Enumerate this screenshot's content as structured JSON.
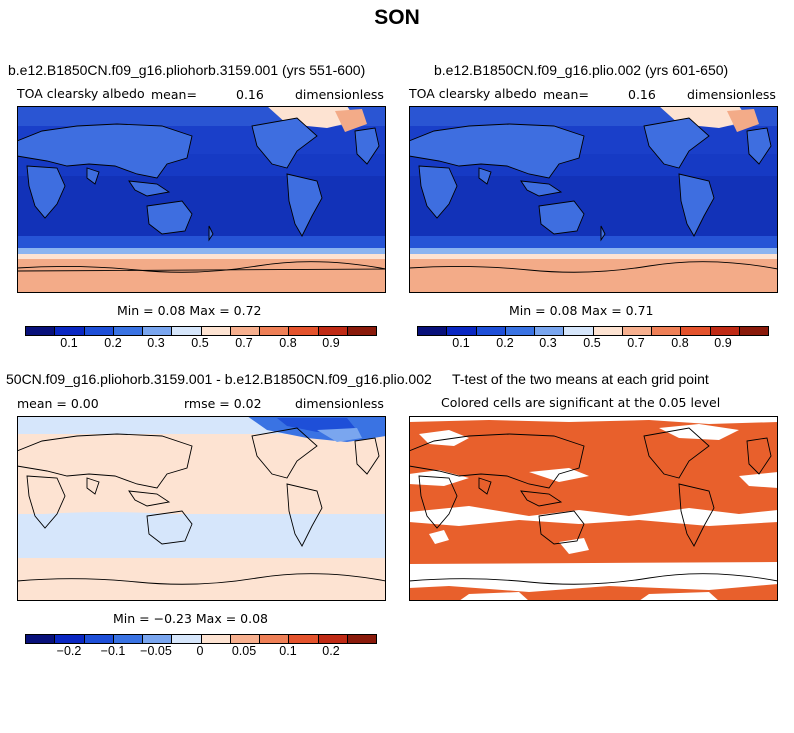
{
  "figure": {
    "title": "SON"
  },
  "colorbar_palette": [
    "#08107a",
    "#0a27c2",
    "#1e4fd8",
    "#3a73e3",
    "#7aa6ef",
    "#d6e6fb",
    "#fde3d2",
    "#f7b08f",
    "#ef8057",
    "#e4532d",
    "#bf2a15",
    "#8a1a0b"
  ],
  "panels": {
    "p1": {
      "title": "b.e12.B1850CN.f09_g16.pliohorb.3159.001 (yrs 551-600)",
      "variable": "TOA clearsky albedo",
      "mean_label": "mean=",
      "mean_value": "0.16",
      "units": "dimensionless",
      "minmax": "Min =   0.08 Max =    0.72",
      "colorbar_ticks": [
        "0.1",
        "0.2",
        "0.3",
        "0.5",
        "0.7",
        "0.8",
        "0.9"
      ]
    },
    "p2": {
      "title": "b.e12.B1850CN.f09_g16.plio.002 (yrs 601-650)",
      "variable": "TOA clearsky albedo",
      "mean_label": "mean=",
      "mean_value": "0.16",
      "units": "dimensionless",
      "minmax": "Min =   0.08 Max =    0.71",
      "colorbar_ticks": [
        "0.1",
        "0.2",
        "0.3",
        "0.5",
        "0.7",
        "0.8",
        "0.9"
      ]
    },
    "p3": {
      "title": "50CN.f09_g16.pliohorb.3159.001 - b.e12.B1850CN.f09_g16.plio.002",
      "mean_text": "mean =   0.00",
      "rmse_text": "rmse =    0.02",
      "units": "dimensionless",
      "minmax": "Min =  −0.23 Max =    0.08",
      "colorbar_ticks": [
        "−0.2",
        "−0.1",
        "−0.05",
        "0",
        "0.05",
        "0.1",
        "0.2"
      ]
    },
    "p4": {
      "title": "T-test of the two means at each grid point",
      "subtitle": "Colored cells are significant at the 0.05 level",
      "significant_color": "#e8602c"
    }
  },
  "chart_data": [
    {
      "type": "heatmap",
      "title": "b.e12.B1850CN.f09_g16.pliohorb.3159.001 (yrs 551-600)",
      "variable": "TOA clearsky albedo",
      "units": "dimensionless",
      "mean": 0.16,
      "min": 0.08,
      "max": 0.72,
      "colorbar_levels": [
        0.1,
        0.2,
        0.3,
        0.5,
        0.7,
        0.8,
        0.9
      ]
    },
    {
      "type": "heatmap",
      "title": "b.e12.B1850CN.f09_g16.plio.002 (yrs 601-650)",
      "variable": "TOA clearsky albedo",
      "units": "dimensionless",
      "mean": 0.16,
      "min": 0.08,
      "max": 0.71,
      "colorbar_levels": [
        0.1,
        0.2,
        0.3,
        0.5,
        0.7,
        0.8,
        0.9
      ]
    },
    {
      "type": "heatmap",
      "title": "50CN.f09_g16.pliohorb.3159.001 - b.e12.B1850CN.f09_g16.plio.002",
      "units": "dimensionless",
      "mean": 0.0,
      "rmse": 0.02,
      "min": -0.23,
      "max": 0.08,
      "colorbar_levels": [
        -0.2,
        -0.1,
        -0.05,
        0,
        0.05,
        0.1,
        0.2
      ]
    },
    {
      "type": "heatmap",
      "title": "T-test of the two means at each grid point",
      "subtitle": "Colored cells are significant at the 0.05 level"
    }
  ]
}
